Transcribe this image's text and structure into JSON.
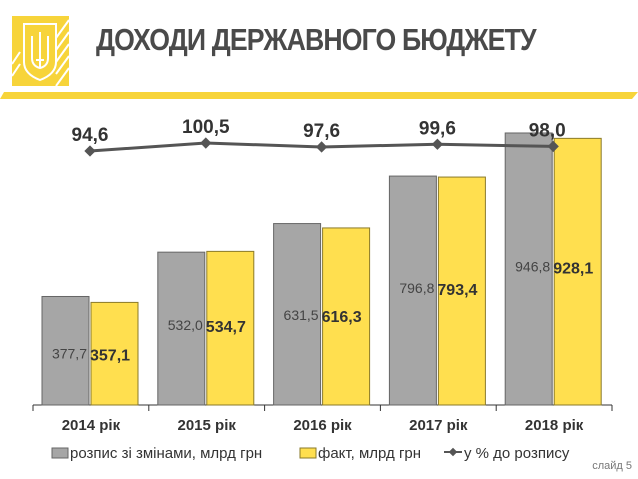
{
  "title": "ДОХОДИ ДЕРЖАВНОГО БЮДЖЕТУ",
  "slide_label": "слайд 5",
  "colors": {
    "gray": "#a6a6a6",
    "yellow": "#ffdf4f",
    "line": "#555555",
    "accent": "#f7d43a"
  },
  "chart_data": {
    "type": "bar",
    "categories": [
      "2014 рік",
      "2015 рік",
      "2016 рік",
      "2017 рік",
      "2018 рік"
    ],
    "series": [
      {
        "name": "розпис зі змінами, млрд грн",
        "values": [
          377.7,
          532.0,
          631.5,
          796.8,
          946.8
        ],
        "labels": [
          "377,7",
          "532,0",
          "631,5",
          "796,8",
          "946,8"
        ]
      },
      {
        "name": "факт, млрд грн",
        "values": [
          357.1,
          534.7,
          616.3,
          793.4,
          928.1
        ],
        "labels": [
          "357,1",
          "534,7",
          "616,3",
          "793,4",
          "928,1"
        ]
      },
      {
        "name": "у % до розпису",
        "type": "line",
        "values": [
          94.6,
          100.5,
          97.6,
          99.6,
          98.0
        ],
        "labels": [
          "94,6",
          "100,5",
          "97,6",
          "99,6",
          "98,0"
        ]
      }
    ],
    "xlabel": "",
    "ylabel": "",
    "grid": false,
    "legend": "bottom"
  }
}
